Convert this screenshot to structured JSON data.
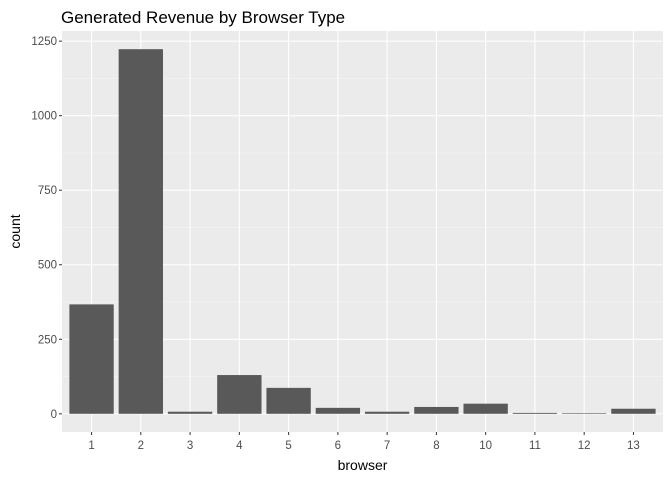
{
  "chart_data": {
    "type": "bar",
    "title": "Generated Revenue by Browser Type",
    "xlabel": "browser",
    "ylabel": "count",
    "categories": [
      "1",
      "2",
      "3",
      "4",
      "5",
      "6",
      "7",
      "8",
      "10",
      "11",
      "12",
      "13"
    ],
    "values": [
      367,
      1223,
      7,
      130,
      87,
      20,
      7,
      23,
      34,
      3,
      2,
      17
    ],
    "yticks": [
      0,
      250,
      500,
      750,
      1000,
      1250
    ],
    "ytick_labels": [
      "0",
      "250",
      "500",
      "750",
      "1000",
      "1250"
    ],
    "ylim": [
      -61,
      1284
    ],
    "grid": true,
    "colors": {
      "bar": "#595959",
      "panel_background": "#ebebeb",
      "grid_major": "#ffffff",
      "grid_minor": "#f5f5f5"
    }
  }
}
